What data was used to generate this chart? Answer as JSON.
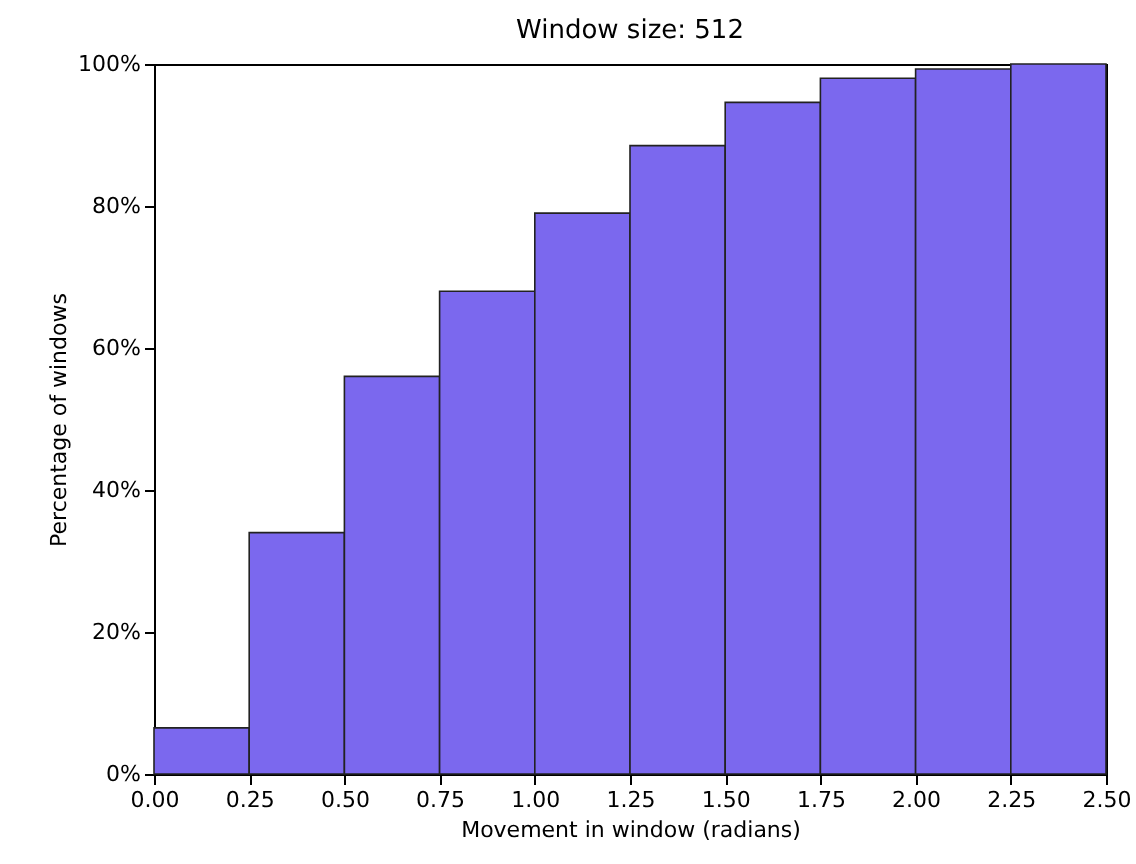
{
  "chart_data": {
    "type": "histogram",
    "title": "Window size: 512",
    "xlabel": "Movement in window (radians)",
    "ylabel": "Percentage of windows",
    "bins": [
      0,
      0.25,
      0.5,
      0.75,
      1.0,
      1.25,
      1.5,
      1.75,
      2.0,
      2.25,
      2.5
    ],
    "values": [
      6.5,
      34,
      56,
      68,
      79,
      88.5,
      94.6,
      98,
      99.3,
      100
    ],
    "color": "#7b68ee",
    "xlim": [
      0,
      2.5
    ],
    "xticks": [
      {
        "value": 0,
        "label": "0.00"
      },
      {
        "value": 0.25,
        "label": "0.25"
      },
      {
        "value": 0.5,
        "label": "0.50"
      },
      {
        "value": 0.75,
        "label": "0.75"
      },
      {
        "value": 1.0,
        "label": "1.00"
      },
      {
        "value": 1.25,
        "label": "1.25"
      },
      {
        "value": 1.5,
        "label": "1.50"
      },
      {
        "value": 1.75,
        "label": "1.75"
      },
      {
        "value": 2.0,
        "label": "2.00"
      },
      {
        "value": 2.25,
        "label": "2.25"
      },
      {
        "value": 2.5,
        "label": "2.50"
      }
    ],
    "ylim": [
      0,
      100
    ],
    "yticks": [
      {
        "value": 0,
        "label": "0%"
      },
      {
        "value": 20,
        "label": "20%"
      },
      {
        "value": 40,
        "label": "40%"
      },
      {
        "value": 60,
        "label": "60%"
      },
      {
        "value": 80,
        "label": "80%"
      },
      {
        "value": 100,
        "label": "100%"
      }
    ],
    "grid": false
  }
}
